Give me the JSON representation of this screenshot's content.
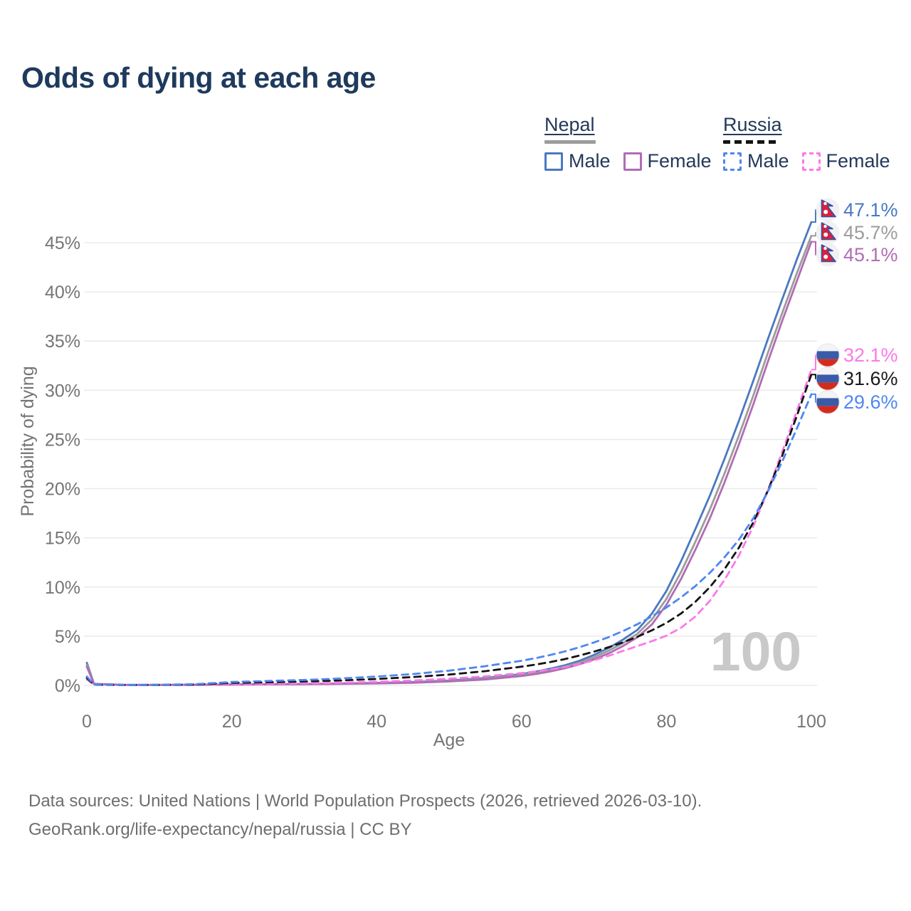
{
  "title": "Odds of dying at each age",
  "legend": {
    "groups": [
      {
        "country": "Nepal",
        "style": "solid",
        "items": [
          {
            "label": "Male"
          },
          {
            "label": "Female"
          }
        ]
      },
      {
        "country": "Russia",
        "style": "dashed",
        "items": [
          {
            "label": "Male"
          },
          {
            "label": "Female"
          }
        ]
      }
    ]
  },
  "watermark_age": "100",
  "footer": {
    "line1": "Data sources: United Nations | World Population Prospects (2026, retrieved 2026-03-10).",
    "line2": "GeoRank.org/life-expectancy/nepal/russia | CC BY"
  },
  "chart_data": {
    "type": "line",
    "title": "Odds of dying at each age",
    "xlabel": "Age",
    "ylabel": "Probability of dying",
    "xlim": [
      0,
      100
    ],
    "ylim_pct": [
      0,
      48.5
    ],
    "x_ticks": [
      0,
      20,
      40,
      60,
      80,
      100
    ],
    "y_ticks": [
      "0%",
      "5%",
      "10%",
      "15%",
      "20%",
      "25%",
      "30%",
      "35%",
      "40%",
      "45%"
    ],
    "grid": "horizontal",
    "legend_position": "top-right",
    "x": [
      0,
      1,
      5,
      10,
      15,
      20,
      25,
      30,
      35,
      40,
      45,
      50,
      55,
      60,
      62,
      64,
      66,
      68,
      70,
      72,
      74,
      76,
      78,
      80,
      82,
      84,
      86,
      88,
      90,
      92,
      94,
      96,
      98,
      100
    ],
    "series": [
      {
        "name": "Nepal Male",
        "country": "Nepal",
        "sex": "Male",
        "color": "#4a79bf",
        "dash": null,
        "end_label": "47.1%",
        "values": [
          2.3,
          0.15,
          0.06,
          0.05,
          0.07,
          0.1,
          0.12,
          0.15,
          0.19,
          0.25,
          0.34,
          0.5,
          0.75,
          1.15,
          1.4,
          1.7,
          2.05,
          2.5,
          3.1,
          3.8,
          4.65,
          5.65,
          7.3,
          9.6,
          12.6,
          15.9,
          19.3,
          23.0,
          26.9,
          31.0,
          35.2,
          39.3,
          43.3,
          47.1
        ]
      },
      {
        "name": "Nepal Both sexes",
        "country": "Nepal",
        "sex": "Both",
        "color": "#9c9c9c",
        "dash": null,
        "end_label": "45.7%",
        "values": [
          2.1,
          0.14,
          0.055,
          0.045,
          0.06,
          0.09,
          0.11,
          0.13,
          0.17,
          0.22,
          0.3,
          0.45,
          0.68,
          1.05,
          1.28,
          1.56,
          1.9,
          2.32,
          2.86,
          3.52,
          4.3,
          5.25,
          6.7,
          8.8,
          11.5,
          14.6,
          17.9,
          21.5,
          25.4,
          29.5,
          33.8,
          37.9,
          41.9,
          45.7
        ]
      },
      {
        "name": "Nepal Female",
        "country": "Nepal",
        "sex": "Female",
        "color": "#b16cb4",
        "dash": null,
        "end_label": "45.1%",
        "values": [
          1.9,
          0.13,
          0.05,
          0.04,
          0.05,
          0.08,
          0.1,
          0.12,
          0.15,
          0.2,
          0.27,
          0.4,
          0.6,
          0.95,
          1.16,
          1.42,
          1.74,
          2.14,
          2.64,
          3.25,
          4.0,
          4.9,
          6.2,
          8.2,
          10.8,
          13.8,
          17.0,
          20.6,
          24.5,
          28.6,
          32.9,
          37.1,
          41.1,
          45.1
        ]
      },
      {
        "name": "Russia Female",
        "country": "Russia",
        "sex": "Female",
        "color": "#fb79e9",
        "dash": "9 7",
        "end_label": "32.1%",
        "values": [
          0.6,
          0.06,
          0.03,
          0.04,
          0.06,
          0.12,
          0.15,
          0.2,
          0.27,
          0.37,
          0.5,
          0.68,
          0.92,
          1.25,
          1.42,
          1.62,
          1.87,
          2.17,
          2.55,
          3.0,
          3.5,
          4.0,
          4.5,
          5.05,
          5.85,
          7.0,
          8.6,
          10.7,
          13.2,
          16.2,
          19.8,
          23.8,
          27.9,
          32.1
        ]
      },
      {
        "name": "Russia Both sexes",
        "country": "Russia",
        "sex": "Both",
        "color": "#141414",
        "dash": "9 7",
        "end_label": "31.6%",
        "values": [
          0.75,
          0.07,
          0.04,
          0.05,
          0.09,
          0.25,
          0.32,
          0.4,
          0.5,
          0.65,
          0.85,
          1.1,
          1.45,
          1.9,
          2.12,
          2.38,
          2.68,
          3.03,
          3.43,
          3.88,
          4.38,
          4.95,
          5.6,
          6.35,
          7.3,
          8.5,
          10.0,
          11.8,
          14.0,
          16.6,
          19.8,
          23.4,
          27.4,
          31.6
        ]
      },
      {
        "name": "Russia Male",
        "country": "Russia",
        "sex": "Male",
        "color": "#4f87f0",
        "dash": "9 7",
        "end_label": "29.6%",
        "values": [
          0.9,
          0.08,
          0.05,
          0.06,
          0.12,
          0.35,
          0.45,
          0.55,
          0.7,
          0.9,
          1.15,
          1.5,
          1.95,
          2.5,
          2.78,
          3.1,
          3.46,
          3.88,
          4.36,
          4.9,
          5.52,
          6.22,
          7.02,
          7.92,
          8.94,
          10.1,
          11.45,
          13.0,
          14.8,
          17.0,
          19.7,
          22.8,
          26.1,
          29.6
        ]
      }
    ]
  }
}
